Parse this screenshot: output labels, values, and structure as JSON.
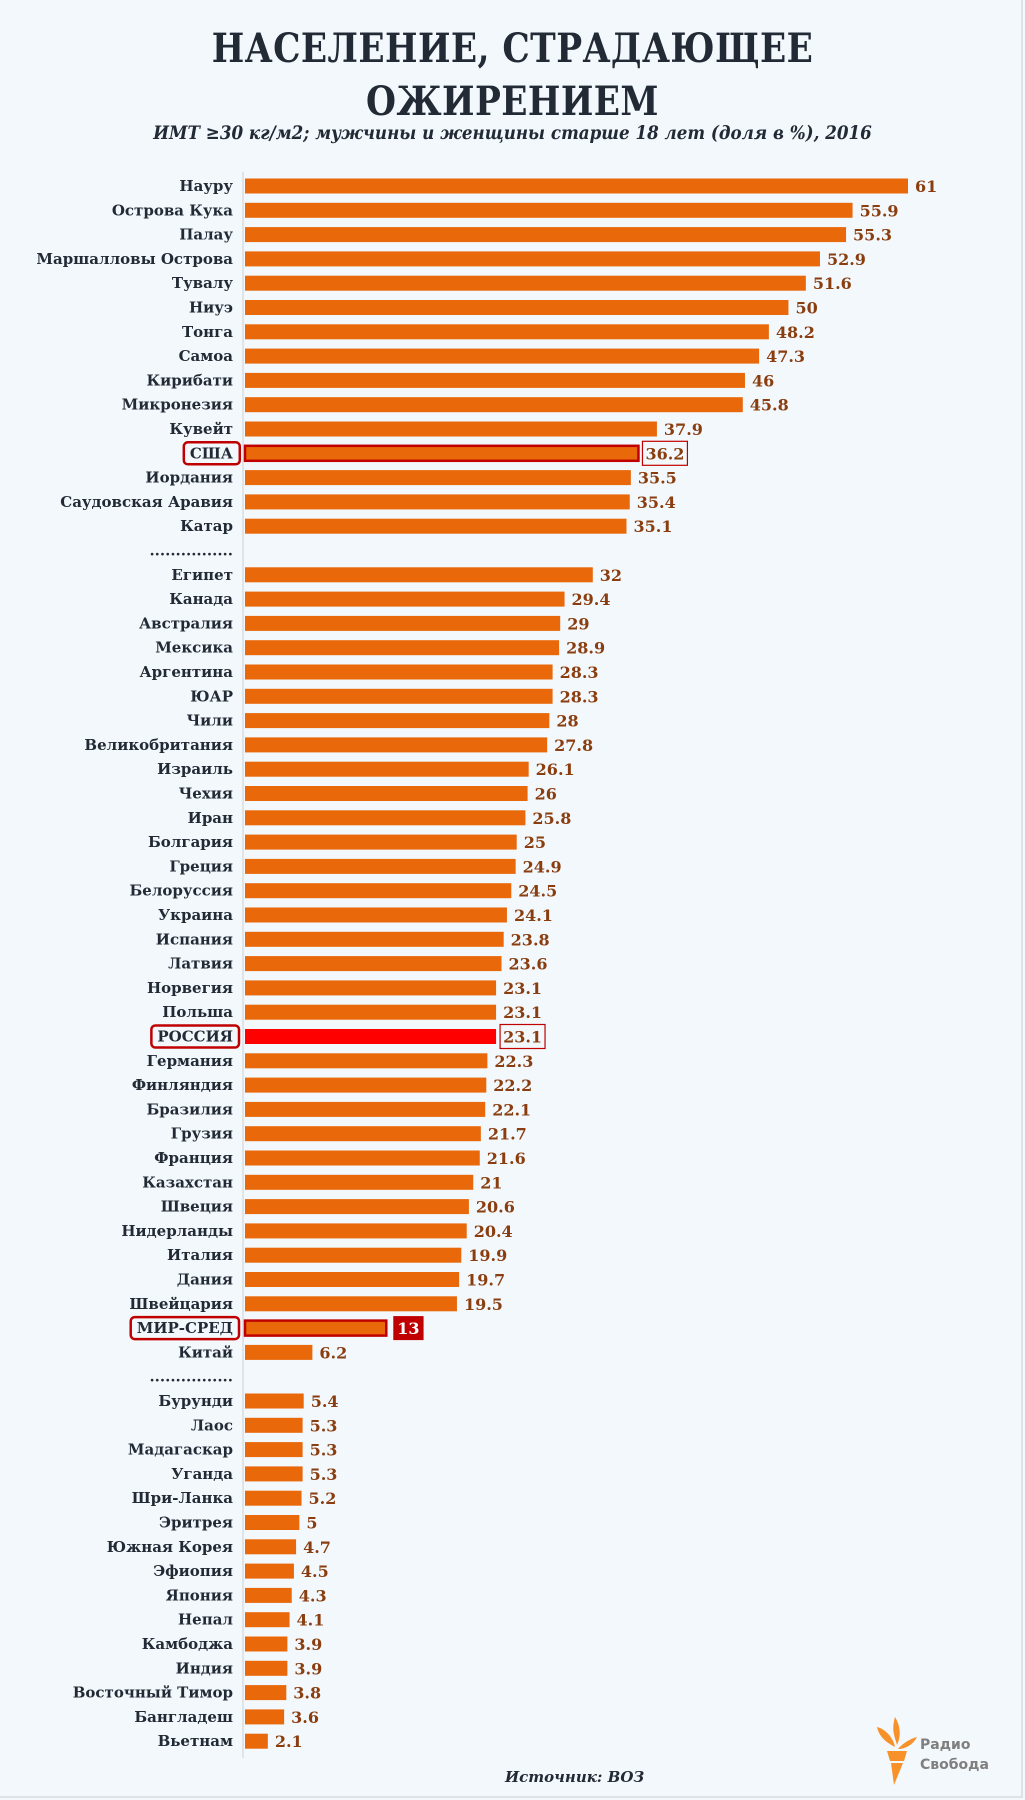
{
  "title_line1": "НАСЕЛЕНИЕ, СТРАДАЮЩЕЕ",
  "title_line2": "ОЖИРЕНИЕМ",
  "subtitle": "ИМТ ≥30 кг/м2; мужчины и женщины старше 18 лет (доля в %), 2016",
  "source": "Источник: ВОЗ",
  "logo": {
    "line1": "Радио",
    "line2": "Свобода",
    "color": "#f7922a"
  },
  "colors": {
    "bar": "#e8680a",
    "value": "#8a3e10",
    "russia": "#ff0000",
    "highlight": "#c00000"
  },
  "chart_data": {
    "type": "bar",
    "orientation": "horizontal",
    "title": "НАСЕЛЕНИЕ, СТРАДАЮЩЕЕ ОЖИРЕНИЕМ",
    "subtitle": "ИМТ ≥30 кг/м2; мужчины и женщины старше 18 лет (доля в %), 2016",
    "xlim": [
      0,
      61
    ],
    "grid": false,
    "separator_label": "................",
    "rows": [
      {
        "label": "Науру",
        "value": 61
      },
      {
        "label": "Острова Кука",
        "value": 55.9
      },
      {
        "label": "Палау",
        "value": 55.3
      },
      {
        "label": "Маршалловы Острова",
        "value": 52.9
      },
      {
        "label": "Тувалу",
        "value": 51.6
      },
      {
        "label": "Ниуэ",
        "value": 50
      },
      {
        "label": "Тонга",
        "value": 48.2
      },
      {
        "label": "Самоа",
        "value": 47.3
      },
      {
        "label": "Кирибати",
        "value": 46
      },
      {
        "label": "Микронезия",
        "value": 45.8
      },
      {
        "label": "Кувейт",
        "value": 37.9
      },
      {
        "label": "США",
        "value": 36.2,
        "highlight": "outline"
      },
      {
        "label": "Иордания",
        "value": 35.5
      },
      {
        "label": "Саудовская Аравия",
        "value": 35.4
      },
      {
        "label": "Катар",
        "value": 35.1
      },
      {
        "separator": true
      },
      {
        "label": "Египет",
        "value": 32
      },
      {
        "label": "Канада",
        "value": 29.4
      },
      {
        "label": "Австралия",
        "value": 29
      },
      {
        "label": "Мексика",
        "value": 28.9
      },
      {
        "label": "Аргентина",
        "value": 28.3
      },
      {
        "label": "ЮАР",
        "value": 28.3
      },
      {
        "label": "Чили",
        "value": 28
      },
      {
        "label": "Великобритания",
        "value": 27.8
      },
      {
        "label": "Израиль",
        "value": 26.1
      },
      {
        "label": "Чехия",
        "value": 26
      },
      {
        "label": "Иран",
        "value": 25.8
      },
      {
        "label": "Болгария",
        "value": 25
      },
      {
        "label": "Греция",
        "value": 24.9
      },
      {
        "label": "Белоруссия",
        "value": 24.5
      },
      {
        "label": "Украина",
        "value": 24.1
      },
      {
        "label": "Испания",
        "value": 23.8
      },
      {
        "label": "Латвия",
        "value": 23.6
      },
      {
        "label": "Норвегия",
        "value": 23.1
      },
      {
        "label": "Польша",
        "value": 23.1
      },
      {
        "label": "РОССИЯ",
        "value": 23.1,
        "highlight": "russia"
      },
      {
        "label": "Германия",
        "value": 22.3
      },
      {
        "label": "Финляндия",
        "value": 22.2
      },
      {
        "label": "Бразилия",
        "value": 22.1
      },
      {
        "label": "Грузия",
        "value": 21.7
      },
      {
        "label": "Франция",
        "value": 21.6
      },
      {
        "label": "Казахстан",
        "value": 21
      },
      {
        "label": "Швеция",
        "value": 20.6
      },
      {
        "label": "Нидерланды",
        "value": 20.4
      },
      {
        "label": "Италия",
        "value": 19.9
      },
      {
        "label": "Дания",
        "value": 19.7
      },
      {
        "label": "Швейцария",
        "value": 19.5
      },
      {
        "label": "МИР-СРЕД",
        "value": 13,
        "highlight": "world"
      },
      {
        "label": "Китай",
        "value": 6.2
      },
      {
        "separator": true
      },
      {
        "label": "Бурунди",
        "value": 5.4
      },
      {
        "label": "Лаос",
        "value": 5.3
      },
      {
        "label": "Мадагаскар",
        "value": 5.3
      },
      {
        "label": "Уганда",
        "value": 5.3
      },
      {
        "label": "Шри-Ланка",
        "value": 5.2
      },
      {
        "label": "Эритрея",
        "value": 5
      },
      {
        "label": "Южная Корея",
        "value": 4.7
      },
      {
        "label": "Эфиопия",
        "value": 4.5
      },
      {
        "label": "Япония",
        "value": 4.3
      },
      {
        "label": "Непал",
        "value": 4.1
      },
      {
        "label": "Камбоджа",
        "value": 3.9
      },
      {
        "label": "Индия",
        "value": 3.9
      },
      {
        "label": "Восточный Тимор",
        "value": 3.8
      },
      {
        "label": "Бангладеш",
        "value": 3.6
      },
      {
        "label": "Вьетнам",
        "value": 2.1
      }
    ]
  }
}
